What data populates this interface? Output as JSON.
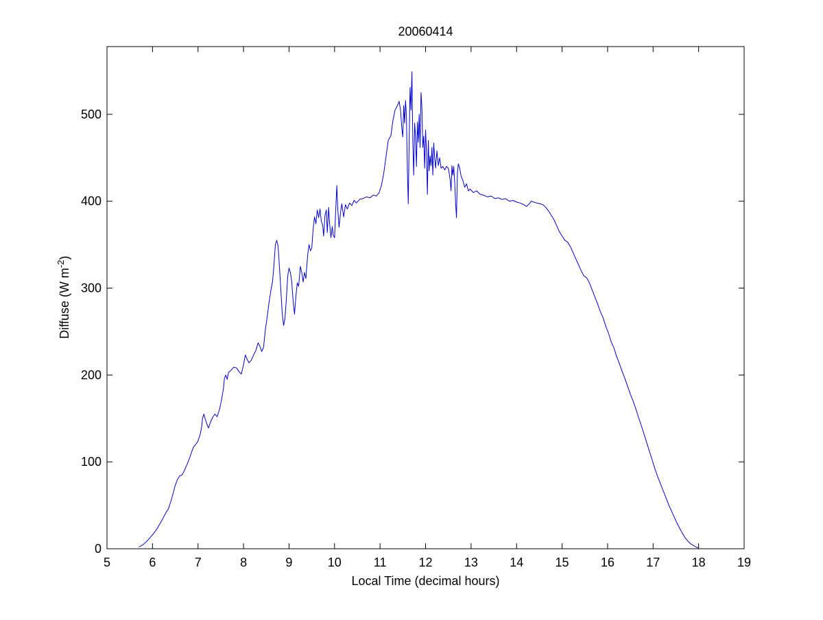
{
  "chart_data": {
    "type": "line",
    "title": "20060414",
    "xlabel": "Local Time (decimal hours)",
    "ylabel": {
      "text": "Diffuse (W m",
      "superscript": "-2",
      "suffix": ")"
    },
    "xlim": [
      5,
      19
    ],
    "ylim": [
      0,
      578
    ],
    "xticks": [
      5,
      6,
      7,
      8,
      9,
      10,
      11,
      12,
      13,
      14,
      15,
      16,
      17,
      18,
      19
    ],
    "yticks": [
      0,
      100,
      200,
      300,
      400,
      500
    ],
    "grid": false,
    "box": true,
    "series": [
      {
        "color": "#0000cc",
        "points": [
          [
            5.7,
            2
          ],
          [
            5.8,
            5
          ],
          [
            5.9,
            10
          ],
          [
            6.0,
            16
          ],
          [
            6.1,
            23
          ],
          [
            6.2,
            32
          ],
          [
            6.3,
            42
          ],
          [
            6.35,
            46
          ],
          [
            6.4,
            54
          ],
          [
            6.45,
            63
          ],
          [
            6.5,
            73
          ],
          [
            6.55,
            80
          ],
          [
            6.6,
            84
          ],
          [
            6.65,
            85
          ],
          [
            6.7,
            90
          ],
          [
            6.75,
            96
          ],
          [
            6.8,
            102
          ],
          [
            6.85,
            110
          ],
          [
            6.9,
            117
          ],
          [
            6.95,
            120
          ],
          [
            7.0,
            124
          ],
          [
            7.05,
            132
          ],
          [
            7.08,
            140
          ],
          [
            7.1,
            150
          ],
          [
            7.13,
            155
          ],
          [
            7.16,
            149
          ],
          [
            7.2,
            143
          ],
          [
            7.23,
            139
          ],
          [
            7.27,
            145
          ],
          [
            7.32,
            151
          ],
          [
            7.37,
            155
          ],
          [
            7.42,
            152
          ],
          [
            7.47,
            160
          ],
          [
            7.52,
            172
          ],
          [
            7.56,
            185
          ],
          [
            7.58,
            196
          ],
          [
            7.61,
            200
          ],
          [
            7.64,
            195
          ],
          [
            7.67,
            203
          ],
          [
            7.72,
            205
          ],
          [
            7.78,
            209
          ],
          [
            7.85,
            208
          ],
          [
            7.9,
            204
          ],
          [
            7.95,
            201
          ],
          [
            8.0,
            212
          ],
          [
            8.04,
            223
          ],
          [
            8.08,
            218
          ],
          [
            8.12,
            214
          ],
          [
            8.17,
            217
          ],
          [
            8.22,
            223
          ],
          [
            8.27,
            228
          ],
          [
            8.32,
            237
          ],
          [
            8.36,
            233
          ],
          [
            8.4,
            227
          ],
          [
            8.44,
            232
          ],
          [
            8.48,
            252
          ],
          [
            8.52,
            267
          ],
          [
            8.56,
            283
          ],
          [
            8.6,
            297
          ],
          [
            8.64,
            308
          ],
          [
            8.67,
            327
          ],
          [
            8.7,
            350
          ],
          [
            8.73,
            355
          ],
          [
            8.76,
            348
          ],
          [
            8.79,
            324
          ],
          [
            8.82,
            298
          ],
          [
            8.85,
            271
          ],
          [
            8.88,
            257
          ],
          [
            8.91,
            265
          ],
          [
            8.94,
            286
          ],
          [
            8.97,
            313
          ],
          [
            9.0,
            323
          ],
          [
            9.03,
            318
          ],
          [
            9.06,
            307
          ],
          [
            9.09,
            285
          ],
          [
            9.12,
            270
          ],
          [
            9.15,
            290
          ],
          [
            9.18,
            306
          ],
          [
            9.21,
            302
          ],
          [
            9.25,
            325
          ],
          [
            9.28,
            318
          ],
          [
            9.31,
            307
          ],
          [
            9.34,
            318
          ],
          [
            9.37,
            311
          ],
          [
            9.41,
            338
          ],
          [
            9.44,
            350
          ],
          [
            9.47,
            343
          ],
          [
            9.5,
            346
          ],
          [
            9.53,
            368
          ],
          [
            9.56,
            382
          ],
          [
            9.59,
            374
          ],
          [
            9.62,
            390
          ],
          [
            9.65,
            381
          ],
          [
            9.68,
            391
          ],
          [
            9.71,
            377
          ],
          [
            9.74,
            372
          ],
          [
            9.76,
            360
          ],
          [
            9.79,
            384
          ],
          [
            9.82,
            390
          ],
          [
            9.84,
            364
          ],
          [
            9.87,
            393
          ],
          [
            9.89,
            375
          ],
          [
            9.92,
            358
          ],
          [
            9.95,
            371
          ],
          [
            9.97,
            361
          ],
          [
            10.0,
            358
          ],
          [
            10.03,
            395
          ],
          [
            10.05,
            418
          ],
          [
            10.07,
            392
          ],
          [
            10.1,
            370
          ],
          [
            10.13,
            386
          ],
          [
            10.16,
            397
          ],
          [
            10.2,
            382
          ],
          [
            10.24,
            396
          ],
          [
            10.28,
            391
          ],
          [
            10.33,
            398
          ],
          [
            10.38,
            395
          ],
          [
            10.43,
            401
          ],
          [
            10.48,
            398
          ],
          [
            10.55,
            402
          ],
          [
            10.62,
            403
          ],
          [
            10.7,
            405
          ],
          [
            10.78,
            404
          ],
          [
            10.85,
            407
          ],
          [
            10.92,
            406
          ],
          [
            10.98,
            410
          ],
          [
            11.03,
            418
          ],
          [
            11.08,
            432
          ],
          [
            11.13,
            451
          ],
          [
            11.18,
            470
          ],
          [
            11.24,
            476
          ],
          [
            11.28,
            492
          ],
          [
            11.33,
            505
          ],
          [
            11.38,
            510
          ],
          [
            11.42,
            515
          ],
          [
            11.45,
            505
          ],
          [
            11.48,
            483
          ],
          [
            11.5,
            474
          ],
          [
            11.52,
            510
          ],
          [
            11.54,
            490
          ],
          [
            11.56,
            516
          ],
          [
            11.58,
            498
          ],
          [
            11.6,
            435
          ],
          [
            11.62,
            397
          ],
          [
            11.64,
            470
          ],
          [
            11.66,
            531
          ],
          [
            11.68,
            505
          ],
          [
            11.7,
            549
          ],
          [
            11.72,
            470
          ],
          [
            11.74,
            430
          ],
          [
            11.76,
            490
          ],
          [
            11.78,
            475
          ],
          [
            11.8,
            440
          ],
          [
            11.82,
            491
          ],
          [
            11.84,
            468
          ],
          [
            11.86,
            500
          ],
          [
            11.88,
            462
          ],
          [
            11.9,
            525
          ],
          [
            11.92,
            508
          ],
          [
            11.94,
            462
          ],
          [
            11.96,
            475
          ],
          [
            11.98,
            438
          ],
          [
            12.0,
            482
          ],
          [
            12.02,
            458
          ],
          [
            12.04,
            408
          ],
          [
            12.06,
            470
          ],
          [
            12.08,
            435
          ],
          [
            12.1,
            452
          ],
          [
            12.12,
            441
          ],
          [
            12.14,
            462
          ],
          [
            12.16,
            430
          ],
          [
            12.18,
            467
          ],
          [
            12.2,
            450
          ],
          [
            12.22,
            438
          ],
          [
            12.25,
            458
          ],
          [
            12.28,
            441
          ],
          [
            12.31,
            450
          ],
          [
            12.34,
            438
          ],
          [
            12.38,
            440
          ],
          [
            12.42,
            436
          ],
          [
            12.46,
            440
          ],
          [
            12.5,
            438
          ],
          [
            12.52,
            432
          ],
          [
            12.54,
            425
          ],
          [
            12.56,
            412
          ],
          [
            12.58,
            441
          ],
          [
            12.6,
            430
          ],
          [
            12.62,
            440
          ],
          [
            12.64,
            422
          ],
          [
            12.66,
            398
          ],
          [
            12.68,
            381
          ],
          [
            12.7,
            432
          ],
          [
            12.72,
            443
          ],
          [
            12.75,
            438
          ],
          [
            12.78,
            429
          ],
          [
            12.82,
            424
          ],
          [
            12.86,
            416
          ],
          [
            12.9,
            420
          ],
          [
            12.94,
            412
          ],
          [
            12.98,
            414
          ],
          [
            13.05,
            410
          ],
          [
            13.12,
            412
          ],
          [
            13.2,
            408
          ],
          [
            13.28,
            407
          ],
          [
            13.36,
            405
          ],
          [
            13.44,
            406
          ],
          [
            13.52,
            403
          ],
          [
            13.6,
            404
          ],
          [
            13.68,
            402
          ],
          [
            13.76,
            403
          ],
          [
            13.84,
            400
          ],
          [
            13.92,
            401
          ],
          [
            14.0,
            399
          ],
          [
            14.08,
            398
          ],
          [
            14.16,
            396
          ],
          [
            14.22,
            394
          ],
          [
            14.28,
            397
          ],
          [
            14.32,
            400
          ],
          [
            14.38,
            399
          ],
          [
            14.44,
            398
          ],
          [
            14.52,
            397
          ],
          [
            14.58,
            396
          ],
          [
            14.64,
            393
          ],
          [
            14.7,
            389
          ],
          [
            14.76,
            384
          ],
          [
            14.82,
            379
          ],
          [
            14.88,
            372
          ],
          [
            14.94,
            365
          ],
          [
            15.0,
            360
          ],
          [
            15.06,
            355
          ],
          [
            15.12,
            353
          ],
          [
            15.18,
            348
          ],
          [
            15.24,
            341
          ],
          [
            15.3,
            334
          ],
          [
            15.36,
            327
          ],
          [
            15.42,
            320
          ],
          [
            15.48,
            314
          ],
          [
            15.54,
            312
          ],
          [
            15.6,
            306
          ],
          [
            15.66,
            298
          ],
          [
            15.72,
            290
          ],
          [
            15.78,
            282
          ],
          [
            15.84,
            273
          ],
          [
            15.9,
            266
          ],
          [
            15.96,
            256
          ],
          [
            16.02,
            248
          ],
          [
            16.08,
            238
          ],
          [
            16.14,
            231
          ],
          [
            16.2,
            221
          ],
          [
            16.26,
            213
          ],
          [
            16.32,
            204
          ],
          [
            16.38,
            196
          ],
          [
            16.44,
            187
          ],
          [
            16.5,
            178
          ],
          [
            16.56,
            170
          ],
          [
            16.62,
            161
          ],
          [
            16.68,
            151
          ],
          [
            16.74,
            142
          ],
          [
            16.8,
            132
          ],
          [
            16.86,
            122
          ],
          [
            16.92,
            112
          ],
          [
            16.98,
            102
          ],
          [
            17.04,
            92
          ],
          [
            17.1,
            83
          ],
          [
            17.16,
            75
          ],
          [
            17.22,
            67
          ],
          [
            17.28,
            59
          ],
          [
            17.34,
            51
          ],
          [
            17.4,
            44
          ],
          [
            17.46,
            37
          ],
          [
            17.52,
            30
          ],
          [
            17.58,
            24
          ],
          [
            17.64,
            18
          ],
          [
            17.7,
            13
          ],
          [
            17.76,
            9
          ],
          [
            17.82,
            6
          ],
          [
            17.88,
            4
          ],
          [
            17.94,
            2
          ],
          [
            17.99,
            1
          ],
          [
            18.0,
            0
          ]
        ]
      }
    ]
  }
}
